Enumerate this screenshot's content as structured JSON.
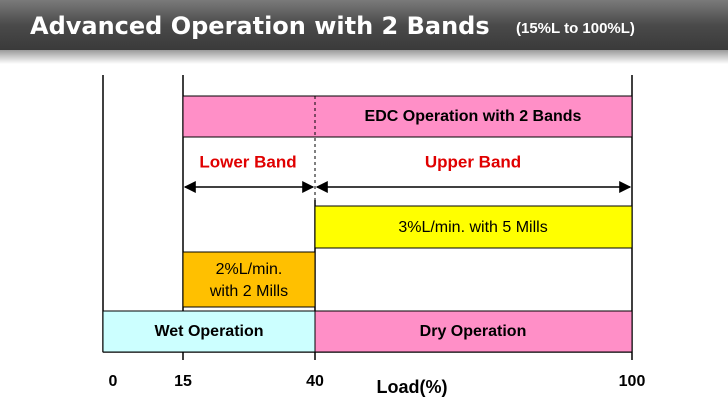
{
  "header": {
    "title": "Advanced Operation with 2 Bands",
    "subtitle": "(15%L to 100%L)"
  },
  "diagram": {
    "edc_box": "EDC Operation with 2 Bands",
    "lower_band": "Lower Band",
    "upper_band": "Upper Band",
    "upper_rate": "3%L/min. with 5 Mills",
    "lower_rate": [
      "2%L/min.",
      "with 2 Mills"
    ],
    "wet": "Wet Operation",
    "dry": "Dry Operation",
    "axis_ticks": [
      "0",
      "15",
      "40",
      "100"
    ],
    "axis_label": "Load(%)"
  }
}
